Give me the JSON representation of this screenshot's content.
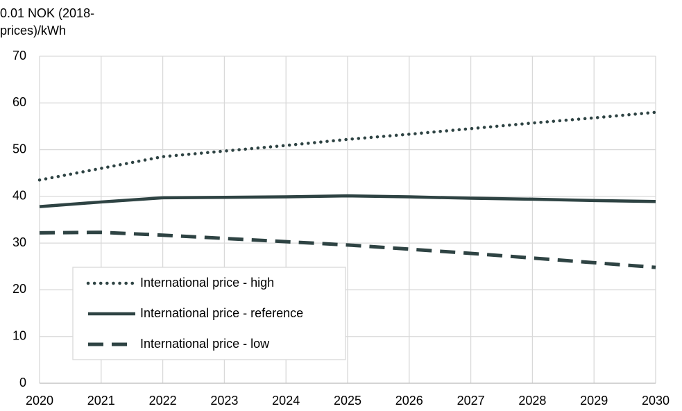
{
  "chart_data": {
    "type": "line",
    "ylabel": [
      "0.01 NOK (2018-",
      "prices)/kWh"
    ],
    "x": [
      2020,
      2021,
      2022,
      2023,
      2024,
      2025,
      2026,
      2027,
      2028,
      2029,
      2030
    ],
    "series": [
      {
        "name": "International price - high",
        "color": "#2e4343",
        "style": "dotted",
        "values": [
          43.5,
          46.0,
          48.5,
          49.7,
          50.9,
          52.2,
          53.3,
          54.5,
          55.7,
          56.8,
          58.0
        ]
      },
      {
        "name": "International price - reference",
        "color": "#2e4343",
        "style": "solid",
        "values": [
          37.8,
          38.8,
          39.7,
          39.8,
          39.9,
          40.1,
          39.9,
          39.6,
          39.4,
          39.1,
          38.9
        ]
      },
      {
        "name": "International price - low",
        "color": "#2e4343",
        "style": "dashed",
        "values": [
          32.2,
          32.3,
          31.7,
          31.0,
          30.3,
          29.6,
          28.7,
          27.8,
          26.8,
          25.8,
          24.8
        ]
      }
    ],
    "xlim": [
      2020,
      2030
    ],
    "xticks": [
      2020,
      2021,
      2022,
      2023,
      2024,
      2025,
      2026,
      2027,
      2028,
      2029,
      2030
    ],
    "ylim": [
      0,
      70
    ],
    "yticks": [
      0,
      10,
      20,
      30,
      40,
      50,
      60,
      70
    ],
    "grid": true,
    "legend": "lower-left"
  }
}
